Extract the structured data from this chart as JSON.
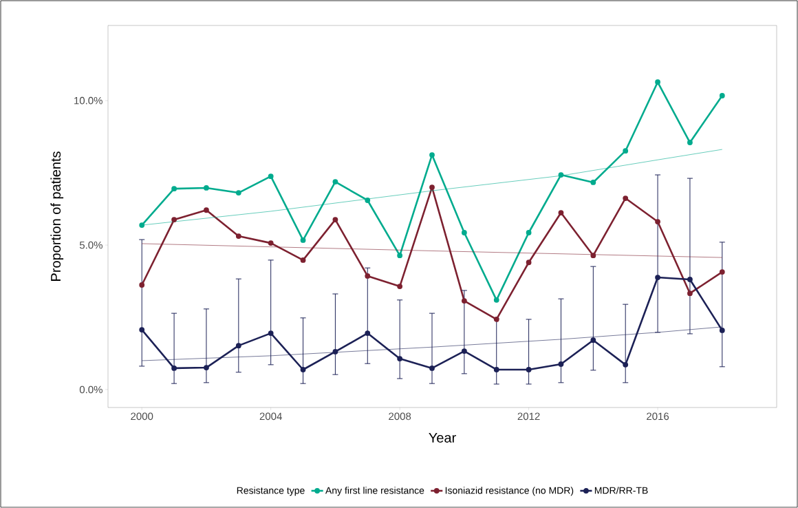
{
  "chart_data": {
    "type": "line",
    "xlabel": "Year",
    "ylabel": "Proportion of patients",
    "legend_title": "Resistance type",
    "xlim": [
      1998.95,
      2019.69
    ],
    "ylim": [
      -0.62,
      12.6
    ],
    "xticks": [
      2000,
      2004,
      2008,
      2012,
      2016
    ],
    "yticks": [
      {
        "value": 0,
        "label": "0.0%"
      },
      {
        "value": 5,
        "label": "5.0%"
      },
      {
        "value": 10,
        "label": "10.0%"
      }
    ],
    "grid": false,
    "legend": "bottom",
    "marker": "circle",
    "line_style": "solid",
    "x": [
      2000,
      2001,
      2002,
      2003,
      2004,
      2005,
      2006,
      2007,
      2008,
      2009,
      2010,
      2011,
      2012,
      2013,
      2014,
      2015,
      2016,
      2017,
      2018
    ],
    "series": [
      {
        "name": "Any first line resistance",
        "color": "#00ab8e",
        "values": [
          5.69,
          6.95,
          6.98,
          6.81,
          7.38,
          5.17,
          7.19,
          6.55,
          4.64,
          8.12,
          5.43,
          3.1,
          5.43,
          7.43,
          7.17,
          8.26,
          10.64,
          8.55,
          10.17
        ]
      },
      {
        "name": "Isoniazid resistance (no MDR)",
        "color": "#7d2130",
        "values": [
          3.62,
          5.88,
          6.21,
          5.31,
          5.07,
          4.48,
          5.88,
          3.93,
          3.57,
          7.0,
          3.07,
          2.43,
          4.4,
          6.12,
          4.64,
          6.62,
          5.81,
          3.33,
          4.07
        ]
      },
      {
        "name": "MDR/RR-TB",
        "color": "#1c2156",
        "values": [
          2.07,
          0.74,
          0.76,
          1.52,
          1.95,
          0.69,
          1.31,
          1.95,
          1.07,
          0.74,
          1.33,
          0.69,
          0.69,
          0.88,
          1.71,
          0.86,
          3.88,
          3.81,
          2.05
        ],
        "errors": [
          [
            0.81,
            5.19
          ],
          [
            0.21,
            2.64
          ],
          [
            0.24,
            2.79
          ],
          [
            0.6,
            3.83
          ],
          [
            0.86,
            4.48
          ],
          [
            0.21,
            2.48
          ],
          [
            0.52,
            3.31
          ],
          [
            0.9,
            4.21
          ],
          [
            0.38,
            3.1
          ],
          [
            0.21,
            2.64
          ],
          [
            0.55,
            3.43
          ],
          [
            0.19,
            2.45
          ],
          [
            0.19,
            2.43
          ],
          [
            0.24,
            3.14
          ],
          [
            0.67,
            4.26
          ],
          [
            0.24,
            2.95
          ],
          [
            1.98,
            7.43
          ],
          [
            1.93,
            7.31
          ],
          [
            0.79,
            5.1
          ]
        ]
      },
      {
        "type": "line",
        "marker": "none",
        "color": "#00ab8e",
        "x": [
          2000,
          2004,
          2009,
          2013,
          2016,
          2018
        ],
        "values": [
          5.69,
          6.17,
          6.88,
          7.4,
          7.95,
          8.31
        ]
      },
      {
        "type": "line",
        "marker": "none",
        "color": "#7d2130",
        "x": [
          2000,
          2009,
          2018
        ],
        "values": [
          5.05,
          4.8,
          4.57
        ]
      },
      {
        "type": "line",
        "marker": "none",
        "color": "#1c2156",
        "x": [
          2000,
          2004,
          2009,
          2013,
          2016,
          2018
        ],
        "values": [
          1.0,
          1.17,
          1.47,
          1.74,
          1.98,
          2.17
        ]
      }
    ]
  }
}
